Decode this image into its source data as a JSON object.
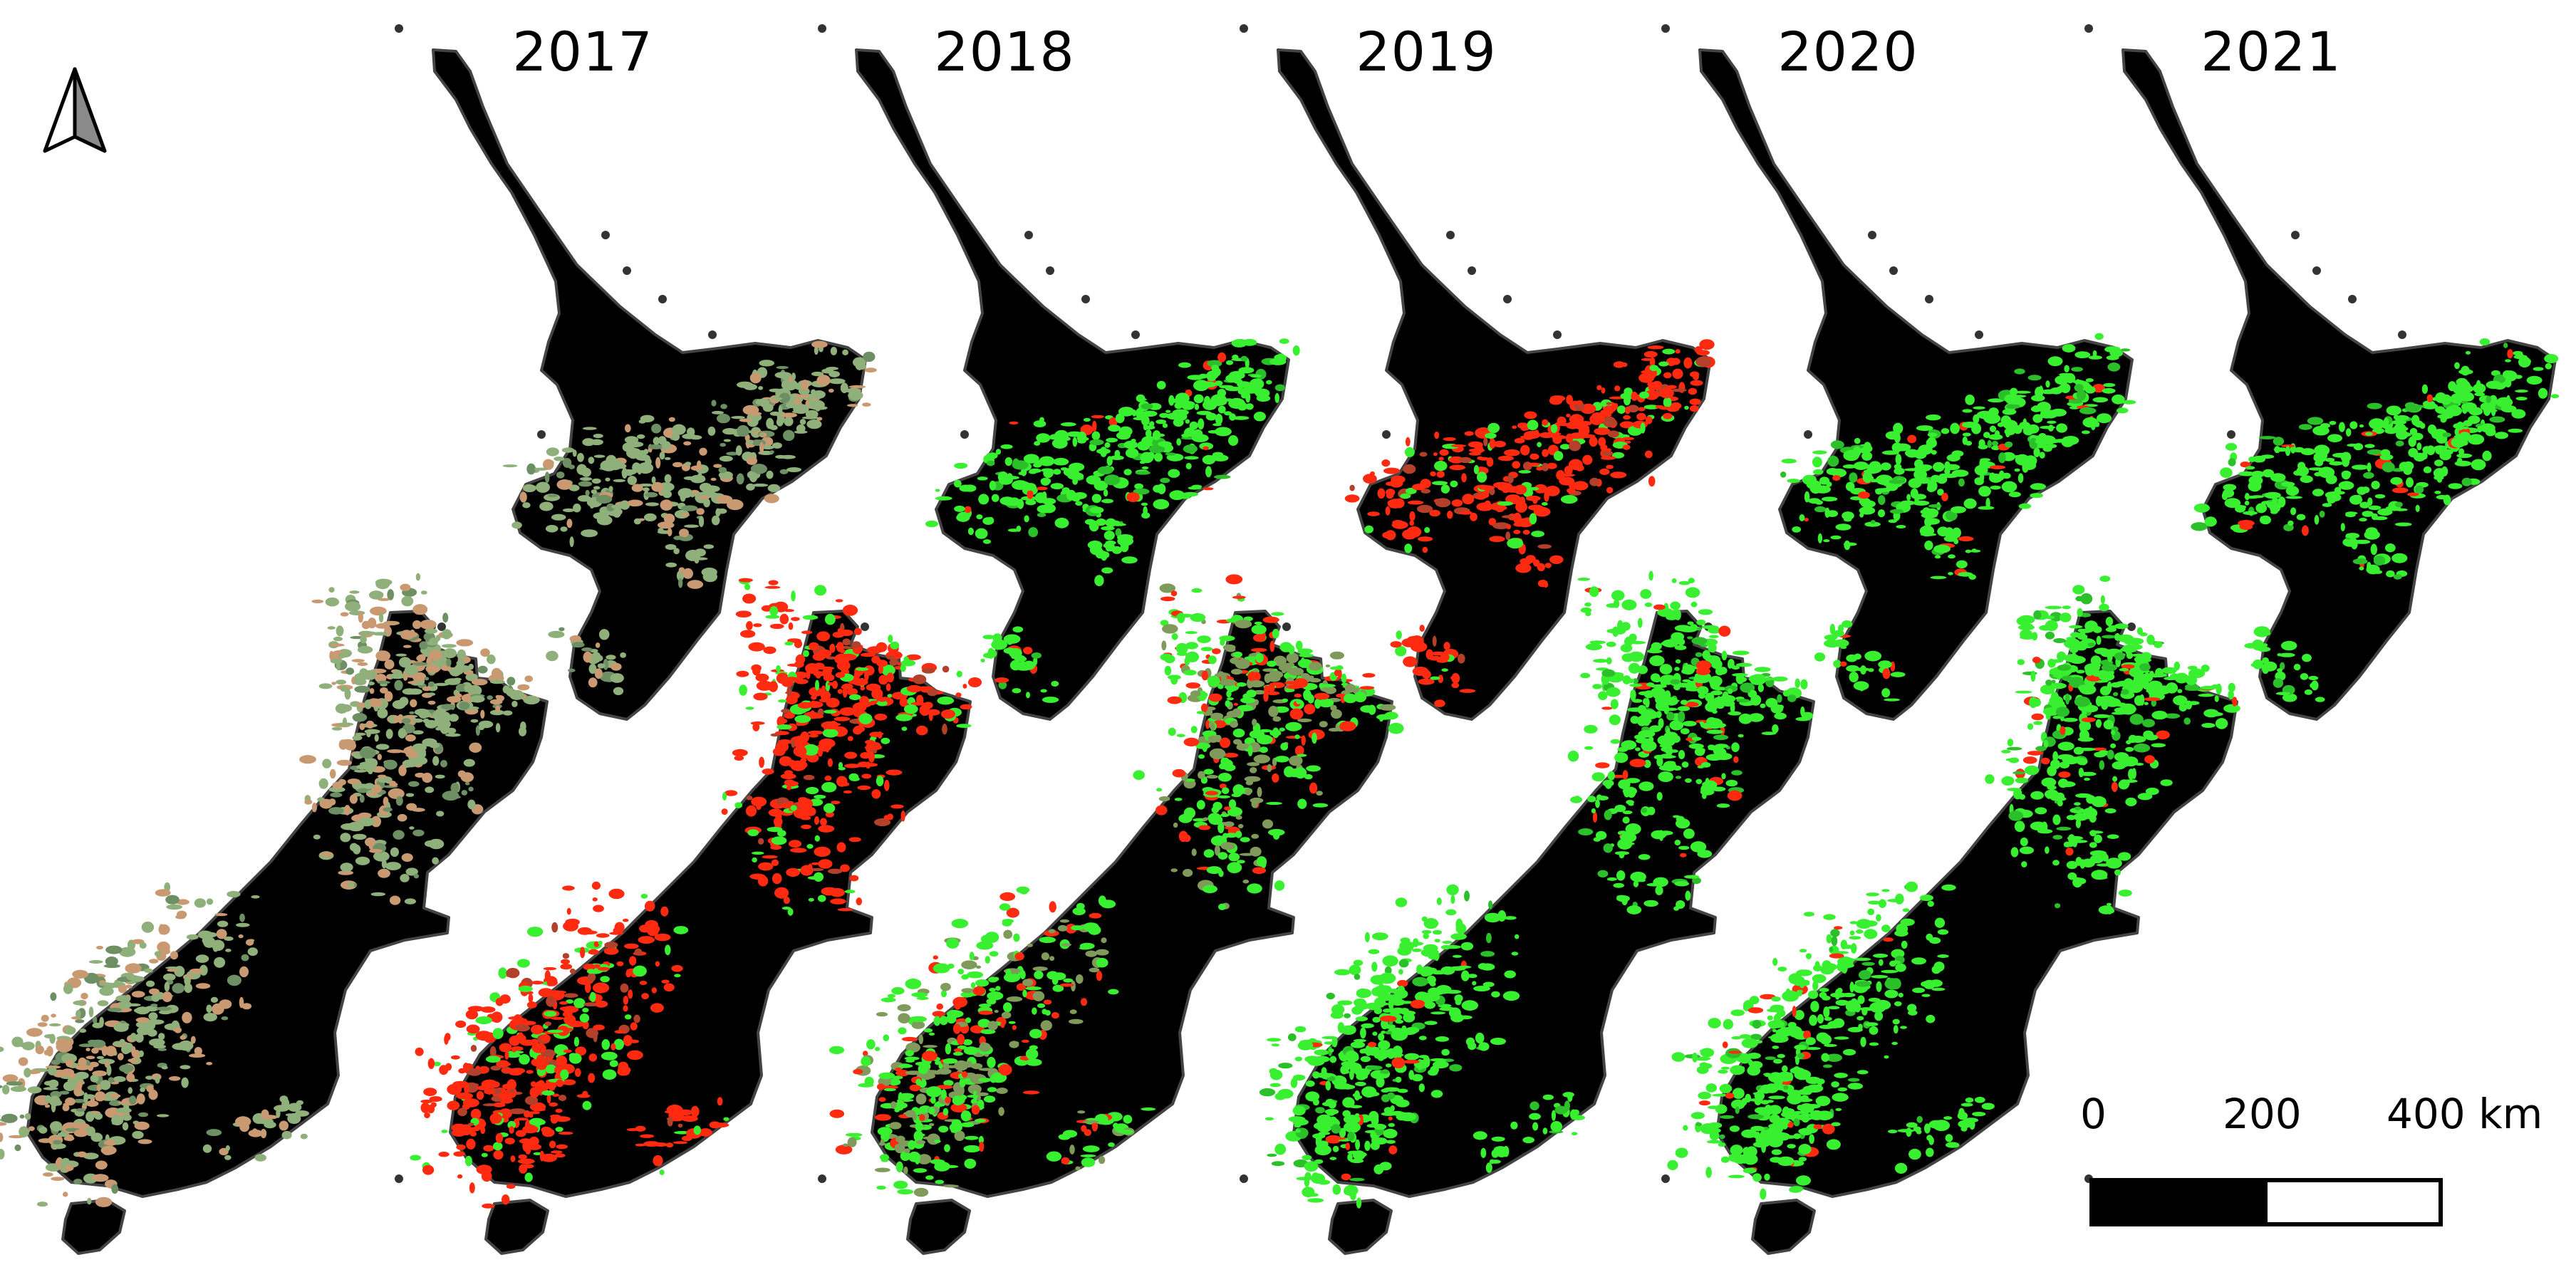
{
  "panels": [
    {
      "year": "2017",
      "vigor": {
        "ni": "pale",
        "si": "pale"
      }
    },
    {
      "year": "2018",
      "vigor": {
        "ni": "green",
        "si": "red"
      }
    },
    {
      "year": "2019",
      "vigor": {
        "ni": "red",
        "si": "mixed"
      }
    },
    {
      "year": "2020",
      "vigor": {
        "ni": "green",
        "si": "green"
      }
    },
    {
      "year": "2021",
      "vigor": {
        "ni": "green",
        "si": "green"
      }
    }
  ],
  "scale_bar": {
    "labels": [
      "0",
      "200",
      "400 km"
    ]
  },
  "colors": {
    "land": "#000000",
    "land_edge": "#444444",
    "green": "#39f030",
    "red": "#ff2a10",
    "pale": "#8fb07a",
    "pale_warm": "#c99a72",
    "background": "#ffffff"
  },
  "icons": {
    "north_arrow": "north-arrow-icon"
  }
}
